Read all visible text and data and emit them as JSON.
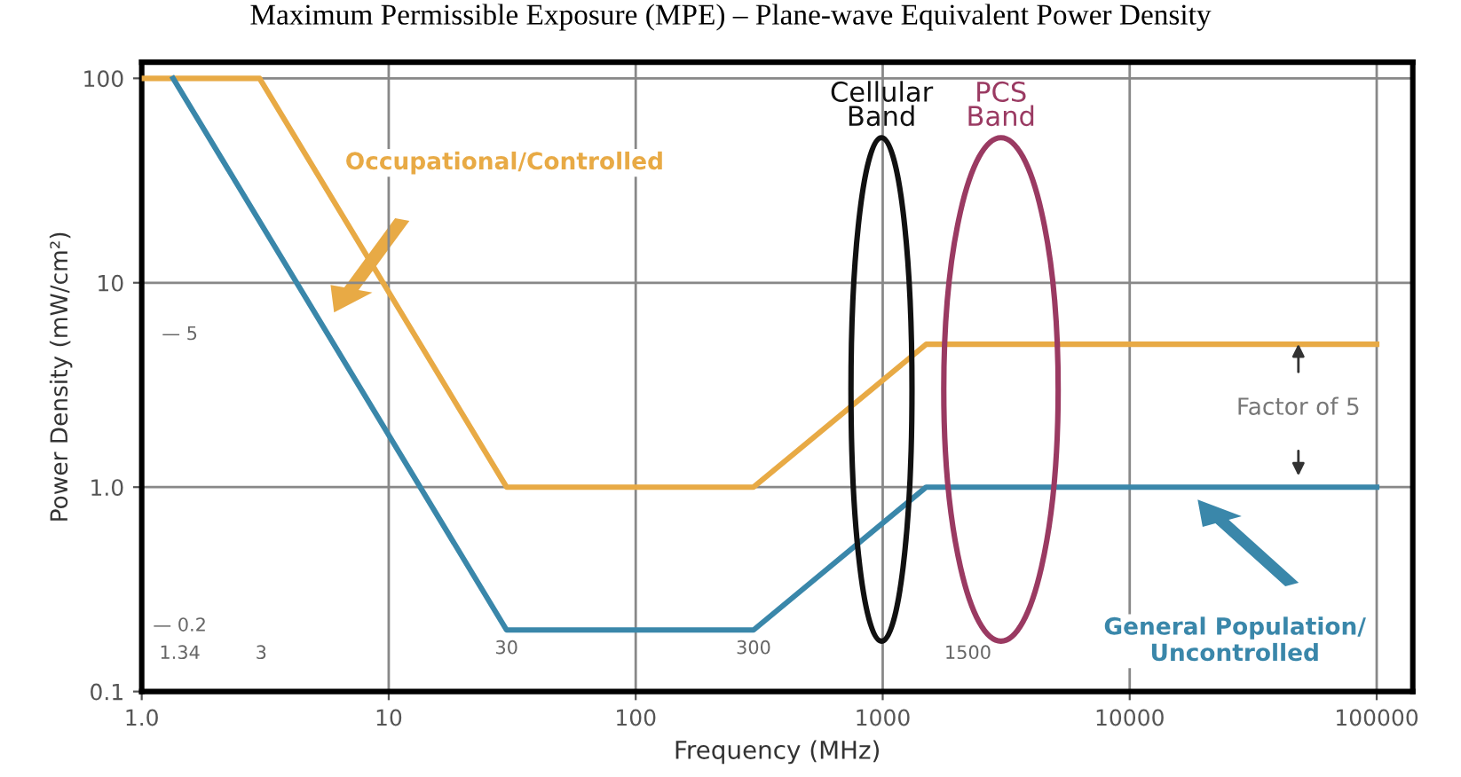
{
  "chart_data": {
    "type": "line",
    "title": "Maximum Permissible Exposure (MPE) – Plane-wave Equivalent Power Density",
    "xlabel": "Frequency (MHz)",
    "ylabel": "Power Density (mW/cm²)",
    "log": "xy",
    "xlim": [
      1,
      140000
    ],
    "ylim": [
      0.1,
      120
    ],
    "xticks": [
      {
        "value": 1,
        "label": "1.0"
      },
      10,
      100,
      1000,
      10000,
      100000
    ],
    "yticks": [
      0.1,
      {
        "value": 1,
        "label": "1.0"
      },
      10,
      100
    ],
    "grid": true,
    "legend": false,
    "marker": "none",
    "line_style": "solid",
    "series": [
      {
        "name": "Occupational/Controlled",
        "color": "#e8aa45",
        "x": [
          1,
          3,
          30,
          300,
          1500,
          100000
        ],
        "values": [
          100,
          100,
          1,
          1,
          5,
          5
        ]
      },
      {
        "name": "General Population/ Uncontrolled",
        "color": "#3a87aa",
        "x": [
          1.34,
          30,
          300,
          1500,
          100000
        ],
        "values": [
          100,
          0.2,
          0.2,
          1,
          1
        ]
      }
    ],
    "annotations": [
      "Cellular Band",
      "PCS Band",
      "— 0.2",
      "— 5",
      "1.34",
      "3",
      {
        "text": "30",
        "x": 30,
        "y": 0.2
      },
      {
        "text": "300",
        "x": 300,
        "y": 0.2
      },
      "1500",
      "Factor of 5"
    ]
  }
}
